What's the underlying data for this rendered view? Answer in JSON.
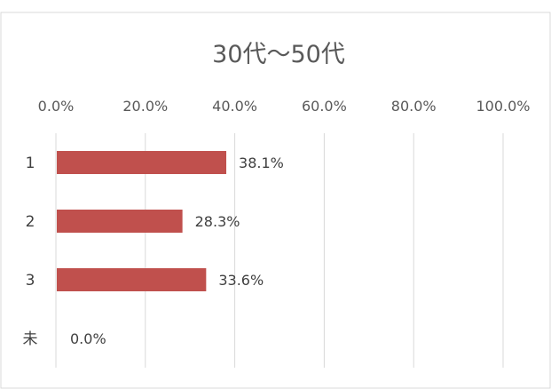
{
  "chart_data": {
    "type": "bar",
    "orientation": "horizontal",
    "title": "30代～50代",
    "categories": [
      "1",
      "2",
      "3",
      "未"
    ],
    "values": [
      38.1,
      28.3,
      33.6,
      0.0
    ],
    "data_labels": [
      "38.1%",
      "28.3%",
      "33.6%",
      "0.0%"
    ],
    "x_ticks": [
      0,
      20,
      40,
      60,
      80,
      100
    ],
    "x_tick_labels": [
      "0.0%",
      "20.0%",
      "40.0%",
      "60.0%",
      "80.0%",
      "100.0%"
    ],
    "xlim": [
      0,
      100
    ],
    "x_axis_position": "top",
    "grid": true,
    "legend": "none",
    "xlabel": "",
    "ylabel": "",
    "bar_color": "#c0504d",
    "grid_color": "#d9d9d9",
    "text_color": "#595959"
  }
}
